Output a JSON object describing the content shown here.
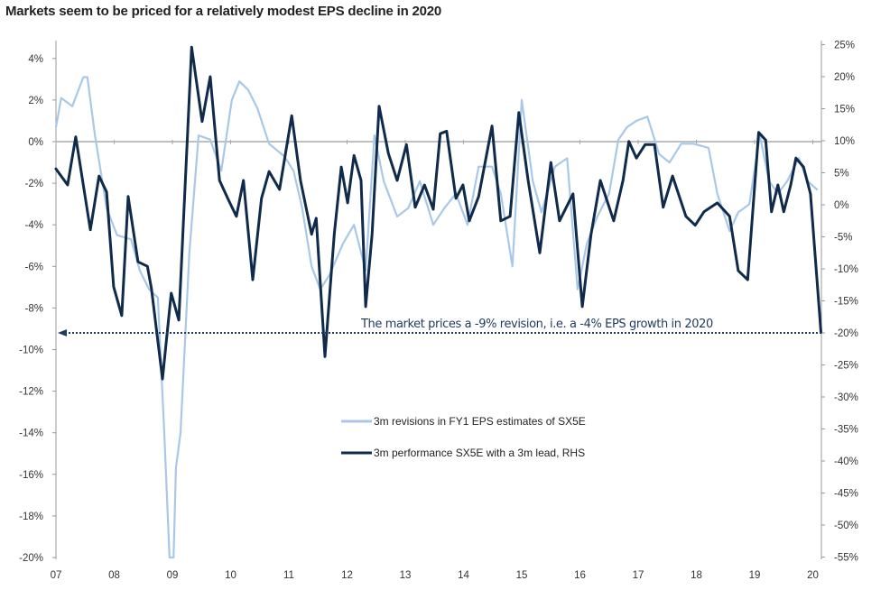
{
  "chart_data": {
    "type": "line",
    "title": "Markets seem to be priced for a relatively modest EPS decline in 2020",
    "x_tick_labels": [
      "07",
      "08",
      "09",
      "10",
      "11",
      "12",
      "13",
      "14",
      "15",
      "16",
      "17",
      "18",
      "19",
      "20"
    ],
    "x_ticks": [
      2007,
      2008,
      2009,
      2010,
      2011,
      2012,
      2013,
      2014,
      2015,
      2016,
      2017,
      2018,
      2019,
      2020
    ],
    "xlim": [
      2007,
      2020.14
    ],
    "y_left": {
      "ylim": [
        -20,
        5
      ],
      "tick_labels": [
        "4%",
        "2%",
        "0%",
        "-2%",
        "-4%",
        "-6%",
        "-8%",
        "-10%",
        "-12%",
        "-14%",
        "-16%",
        "-18%",
        "-20%"
      ],
      "ticks": [
        4,
        2,
        0,
        -2,
        -4,
        -6,
        -8,
        -10,
        -12,
        -14,
        -16,
        -18,
        -20
      ]
    },
    "y_right": {
      "ylim": [
        -55,
        26
      ],
      "tick_labels": [
        "25%",
        "20%",
        "15%",
        "10%",
        "5%",
        "0%",
        "-5%",
        "-10%",
        "-15%",
        "-20%",
        "-25%",
        "-30%",
        "-35%",
        "-40%",
        "-45%",
        "-50%",
        "-55%"
      ],
      "ticks": [
        25,
        20,
        15,
        10,
        5,
        0,
        -5,
        -10,
        -15,
        -20,
        -25,
        -30,
        -35,
        -40,
        -45,
        -50,
        -55
      ]
    },
    "grid": false,
    "legend_position": "center-bottom",
    "annotation": "The market prices a -9% revision, i.e. a -4% EPS growth in 2020",
    "annotation_level": {
      "left_axis": -9,
      "right_axis": -20
    },
    "series": [
      {
        "name": "3m revisions in FY1 EPS estimates of SX5E",
        "axis": "left",
        "color": "#a9c8e8",
        "points": [
          [
            2007.0,
            0.7
          ],
          [
            2007.09,
            2.1
          ],
          [
            2007.28,
            1.7
          ],
          [
            2007.47,
            3.1
          ],
          [
            2007.54,
            3.1
          ],
          [
            2007.67,
            0.3
          ],
          [
            2007.87,
            -3.2
          ],
          [
            2008.05,
            -4.5
          ],
          [
            2008.29,
            -4.7
          ],
          [
            2008.44,
            -6.2
          ],
          [
            2008.6,
            -7.1
          ],
          [
            2008.75,
            -7.5
          ],
          [
            2008.86,
            -14
          ],
          [
            2008.95,
            -20
          ],
          [
            2009.02,
            -20
          ],
          [
            2009.06,
            -15.7
          ],
          [
            2009.14,
            -14
          ],
          [
            2009.29,
            -5.4
          ],
          [
            2009.45,
            0.3
          ],
          [
            2009.65,
            0.1
          ],
          [
            2009.84,
            -1.4
          ],
          [
            2010.02,
            2.0
          ],
          [
            2010.15,
            2.9
          ],
          [
            2010.3,
            2.5
          ],
          [
            2010.46,
            1.6
          ],
          [
            2010.66,
            -0.1
          ],
          [
            2010.92,
            -0.7
          ],
          [
            2011.08,
            -1.4
          ],
          [
            2011.23,
            -3.2
          ],
          [
            2011.39,
            -6.0
          ],
          [
            2011.54,
            -7.1
          ],
          [
            2011.7,
            -6.4
          ],
          [
            2011.93,
            -4.9
          ],
          [
            2012.12,
            -4.0
          ],
          [
            2012.32,
            -6.2
          ],
          [
            2012.47,
            0.3
          ],
          [
            2012.63,
            -1.9
          ],
          [
            2012.86,
            -3.6
          ],
          [
            2013.05,
            -3.2
          ],
          [
            2013.25,
            -1.9
          ],
          [
            2013.48,
            -4.0
          ],
          [
            2013.67,
            -3.2
          ],
          [
            2013.87,
            -2.5
          ],
          [
            2014.07,
            -4.0
          ],
          [
            2014.26,
            -1.2
          ],
          [
            2014.49,
            -1.2
          ],
          [
            2014.64,
            -2.5
          ],
          [
            2014.84,
            -6.0
          ],
          [
            2015.0,
            2.0
          ],
          [
            2015.19,
            -1.9
          ],
          [
            2015.34,
            -3.4
          ],
          [
            2015.57,
            -1.2
          ],
          [
            2015.78,
            -0.8
          ],
          [
            2015.96,
            -7.1
          ],
          [
            2016.12,
            -4.9
          ],
          [
            2016.3,
            -3.6
          ],
          [
            2016.5,
            -2.5
          ],
          [
            2016.66,
            0.1
          ],
          [
            2016.81,
            0.7
          ],
          [
            2016.97,
            1.0
          ],
          [
            2017.16,
            1.2
          ],
          [
            2017.36,
            -0.6
          ],
          [
            2017.54,
            -1.0
          ],
          [
            2017.74,
            -0.1
          ],
          [
            2017.95,
            -0.1
          ],
          [
            2018.21,
            -0.3
          ],
          [
            2018.36,
            -2.5
          ],
          [
            2018.57,
            -4.3
          ],
          [
            2018.72,
            -3.4
          ],
          [
            2018.91,
            -3.0
          ],
          [
            2019.09,
            0.3
          ],
          [
            2019.25,
            -1.9
          ],
          [
            2019.4,
            -2.5
          ],
          [
            2019.56,
            -1.9
          ],
          [
            2019.76,
            -0.8
          ],
          [
            2019.91,
            -1.9
          ],
          [
            2020.07,
            -2.3
          ]
        ]
      },
      {
        "name": "3m performance SX5E with a 3m lead, RHS",
        "axis": "right",
        "color": "#0f2a4a",
        "points": [
          [
            2007.0,
            5.6
          ],
          [
            2007.2,
            3.1
          ],
          [
            2007.34,
            10.6
          ],
          [
            2007.59,
            -3.9
          ],
          [
            2007.74,
            4.5
          ],
          [
            2007.87,
            2.0
          ],
          [
            2007.99,
            -12.8
          ],
          [
            2008.13,
            -17.3
          ],
          [
            2008.24,
            1.3
          ],
          [
            2008.41,
            -8.9
          ],
          [
            2008.57,
            -9.6
          ],
          [
            2008.64,
            -13.1
          ],
          [
            2008.83,
            -27.2
          ],
          [
            2008.98,
            -13.8
          ],
          [
            2009.11,
            -18.0
          ],
          [
            2009.33,
            24.6
          ],
          [
            2009.51,
            13.0
          ],
          [
            2009.65,
            20.0
          ],
          [
            2009.81,
            3.8
          ],
          [
            2009.95,
            1.0
          ],
          [
            2010.1,
            -1.8
          ],
          [
            2010.22,
            3.8
          ],
          [
            2010.38,
            -11.7
          ],
          [
            2010.53,
            1.0
          ],
          [
            2010.66,
            5.2
          ],
          [
            2010.84,
            2.4
          ],
          [
            2011.05,
            13.9
          ],
          [
            2011.2,
            3.8
          ],
          [
            2011.39,
            -4.6
          ],
          [
            2011.47,
            -2.1
          ],
          [
            2011.62,
            -23.7
          ],
          [
            2011.78,
            -4.6
          ],
          [
            2011.9,
            5.9
          ],
          [
            2012.01,
            0.3
          ],
          [
            2012.12,
            7.7
          ],
          [
            2012.24,
            3.8
          ],
          [
            2012.32,
            -15.9
          ],
          [
            2012.43,
            -4.6
          ],
          [
            2012.55,
            15.4
          ],
          [
            2012.71,
            8.0
          ],
          [
            2012.86,
            3.8
          ],
          [
            2013.02,
            9.4
          ],
          [
            2013.17,
            -0.4
          ],
          [
            2013.33,
            3.1
          ],
          [
            2013.48,
            -0.7
          ],
          [
            2013.6,
            11.1
          ],
          [
            2013.71,
            11.5
          ],
          [
            2013.87,
            1.0
          ],
          [
            2013.99,
            3.1
          ],
          [
            2014.1,
            -2.5
          ],
          [
            2014.26,
            1.3
          ],
          [
            2014.49,
            12.3
          ],
          [
            2014.64,
            -2.5
          ],
          [
            2014.8,
            -1.8
          ],
          [
            2014.95,
            14.4
          ],
          [
            2015.11,
            3.8
          ],
          [
            2015.31,
            -7.5
          ],
          [
            2015.5,
            6.6
          ],
          [
            2015.65,
            -2.5
          ],
          [
            2015.88,
            1.7
          ],
          [
            2016.04,
            -15.9
          ],
          [
            2016.19,
            -4.6
          ],
          [
            2016.35,
            3.8
          ],
          [
            2016.58,
            -2.5
          ],
          [
            2016.74,
            3.8
          ],
          [
            2016.84,
            9.9
          ],
          [
            2016.97,
            7.3
          ],
          [
            2017.12,
            9.4
          ],
          [
            2017.28,
            9.4
          ],
          [
            2017.43,
            -0.4
          ],
          [
            2017.59,
            4.5
          ],
          [
            2017.82,
            -1.8
          ],
          [
            2017.98,
            -3.2
          ],
          [
            2018.13,
            -1.1
          ],
          [
            2018.36,
            0.3
          ],
          [
            2018.57,
            -1.8
          ],
          [
            2018.72,
            -10.3
          ],
          [
            2018.88,
            -11.7
          ],
          [
            2019.07,
            11.3
          ],
          [
            2019.19,
            10.1
          ],
          [
            2019.29,
            -1.1
          ],
          [
            2019.4,
            3.1
          ],
          [
            2019.5,
            -1.1
          ],
          [
            2019.62,
            3.1
          ],
          [
            2019.71,
            7.3
          ],
          [
            2019.84,
            5.9
          ],
          [
            2019.96,
            1.7
          ],
          [
            2020.14,
            -19.9
          ]
        ]
      }
    ]
  }
}
